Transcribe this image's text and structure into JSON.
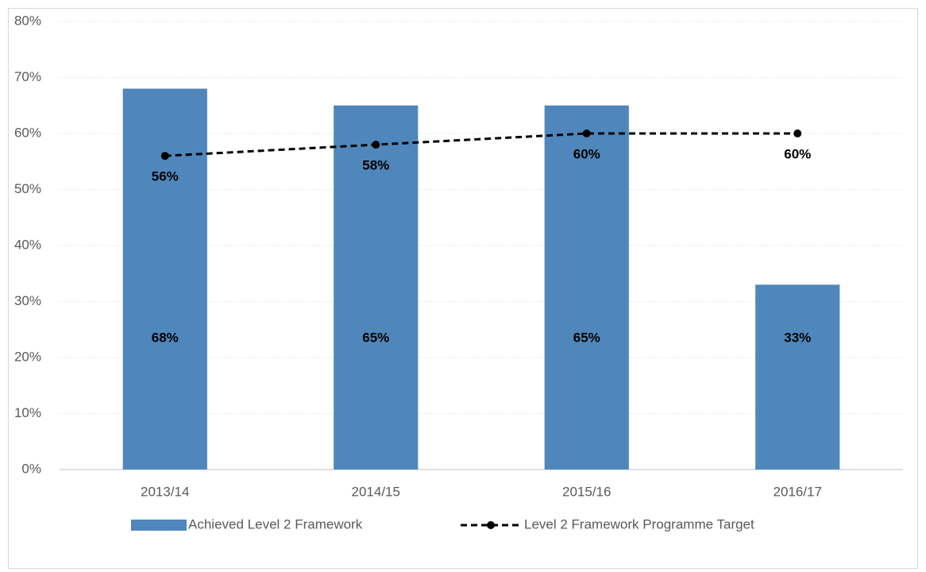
{
  "chart_data": {
    "type": "bar",
    "categories": [
      "2013/14",
      "2014/15",
      "2015/16",
      "2016/17"
    ],
    "series": [
      {
        "name": "Achieved Level 2 Framework",
        "type": "bar",
        "color": "#4f87bc",
        "values": [
          68,
          65,
          65,
          33
        ],
        "value_labels": [
          "68%",
          "65%",
          "65%",
          "33%"
        ]
      },
      {
        "name": "Level 2 Framework Programme Target",
        "type": "line",
        "color": "#000000",
        "values": [
          56,
          58,
          60,
          60
        ],
        "value_labels": [
          "56%",
          "58%",
          "60%",
          "60%"
        ]
      }
    ],
    "ylim": [
      0,
      80
    ],
    "yticks": [
      {
        "value": 0,
        "label": "0%"
      },
      {
        "value": 10,
        "label": "10%"
      },
      {
        "value": 20,
        "label": "20%"
      },
      {
        "value": 30,
        "label": "30%"
      },
      {
        "value": 40,
        "label": "40%"
      },
      {
        "value": 50,
        "label": "50%"
      },
      {
        "value": 60,
        "label": "60%"
      },
      {
        "value": 70,
        "label": "70%"
      },
      {
        "value": 80,
        "label": "80%"
      }
    ],
    "grid": true,
    "legend": "bottom"
  }
}
